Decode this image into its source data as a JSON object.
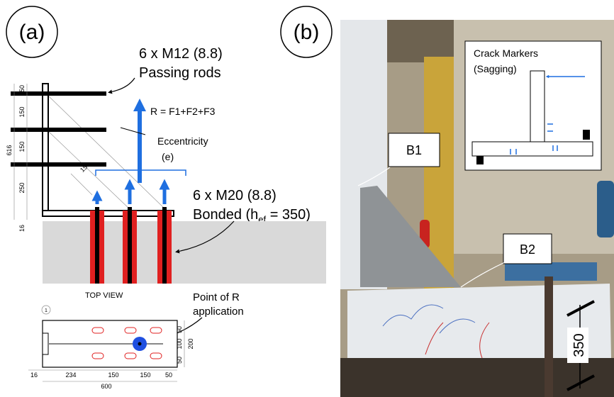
{
  "panel_a": {
    "label": "(a)",
    "rods_title": "6 x M12 (8.8)",
    "rods_subtitle": "Passing rods",
    "resultant": "R = F1+F2+F3",
    "eccentricity": "Eccentricity",
    "eccentricity_symbol": "(e)",
    "anchors_title": "6 x M20 (8.8)",
    "anchors_subtitle": {
      "prefix": "Bonded (h",
      "subscript": "ef",
      "suffix": " = 350)"
    },
    "diagonal_dim": "150",
    "side_dims": [
      "50",
      "150",
      "150",
      "250"
    ],
    "height_dim": "616",
    "plate_dim": "16",
    "top_view": "TOP VIEW",
    "point_label": [
      "Point of R",
      "application"
    ],
    "view_number": "1",
    "plan_right_dims": [
      "50",
      "100",
      "50"
    ],
    "plan_width_dim": "200",
    "plan_bottom_dims": [
      "16",
      "234",
      "150",
      "150",
      "50"
    ],
    "plan_length_dim": "600"
  },
  "panel_b": {
    "label": "(b)",
    "inset_title": [
      "Crack Markers",
      "(Sagging)"
    ],
    "b1": "B1",
    "b2": "B2",
    "depth_dim": "350"
  }
}
